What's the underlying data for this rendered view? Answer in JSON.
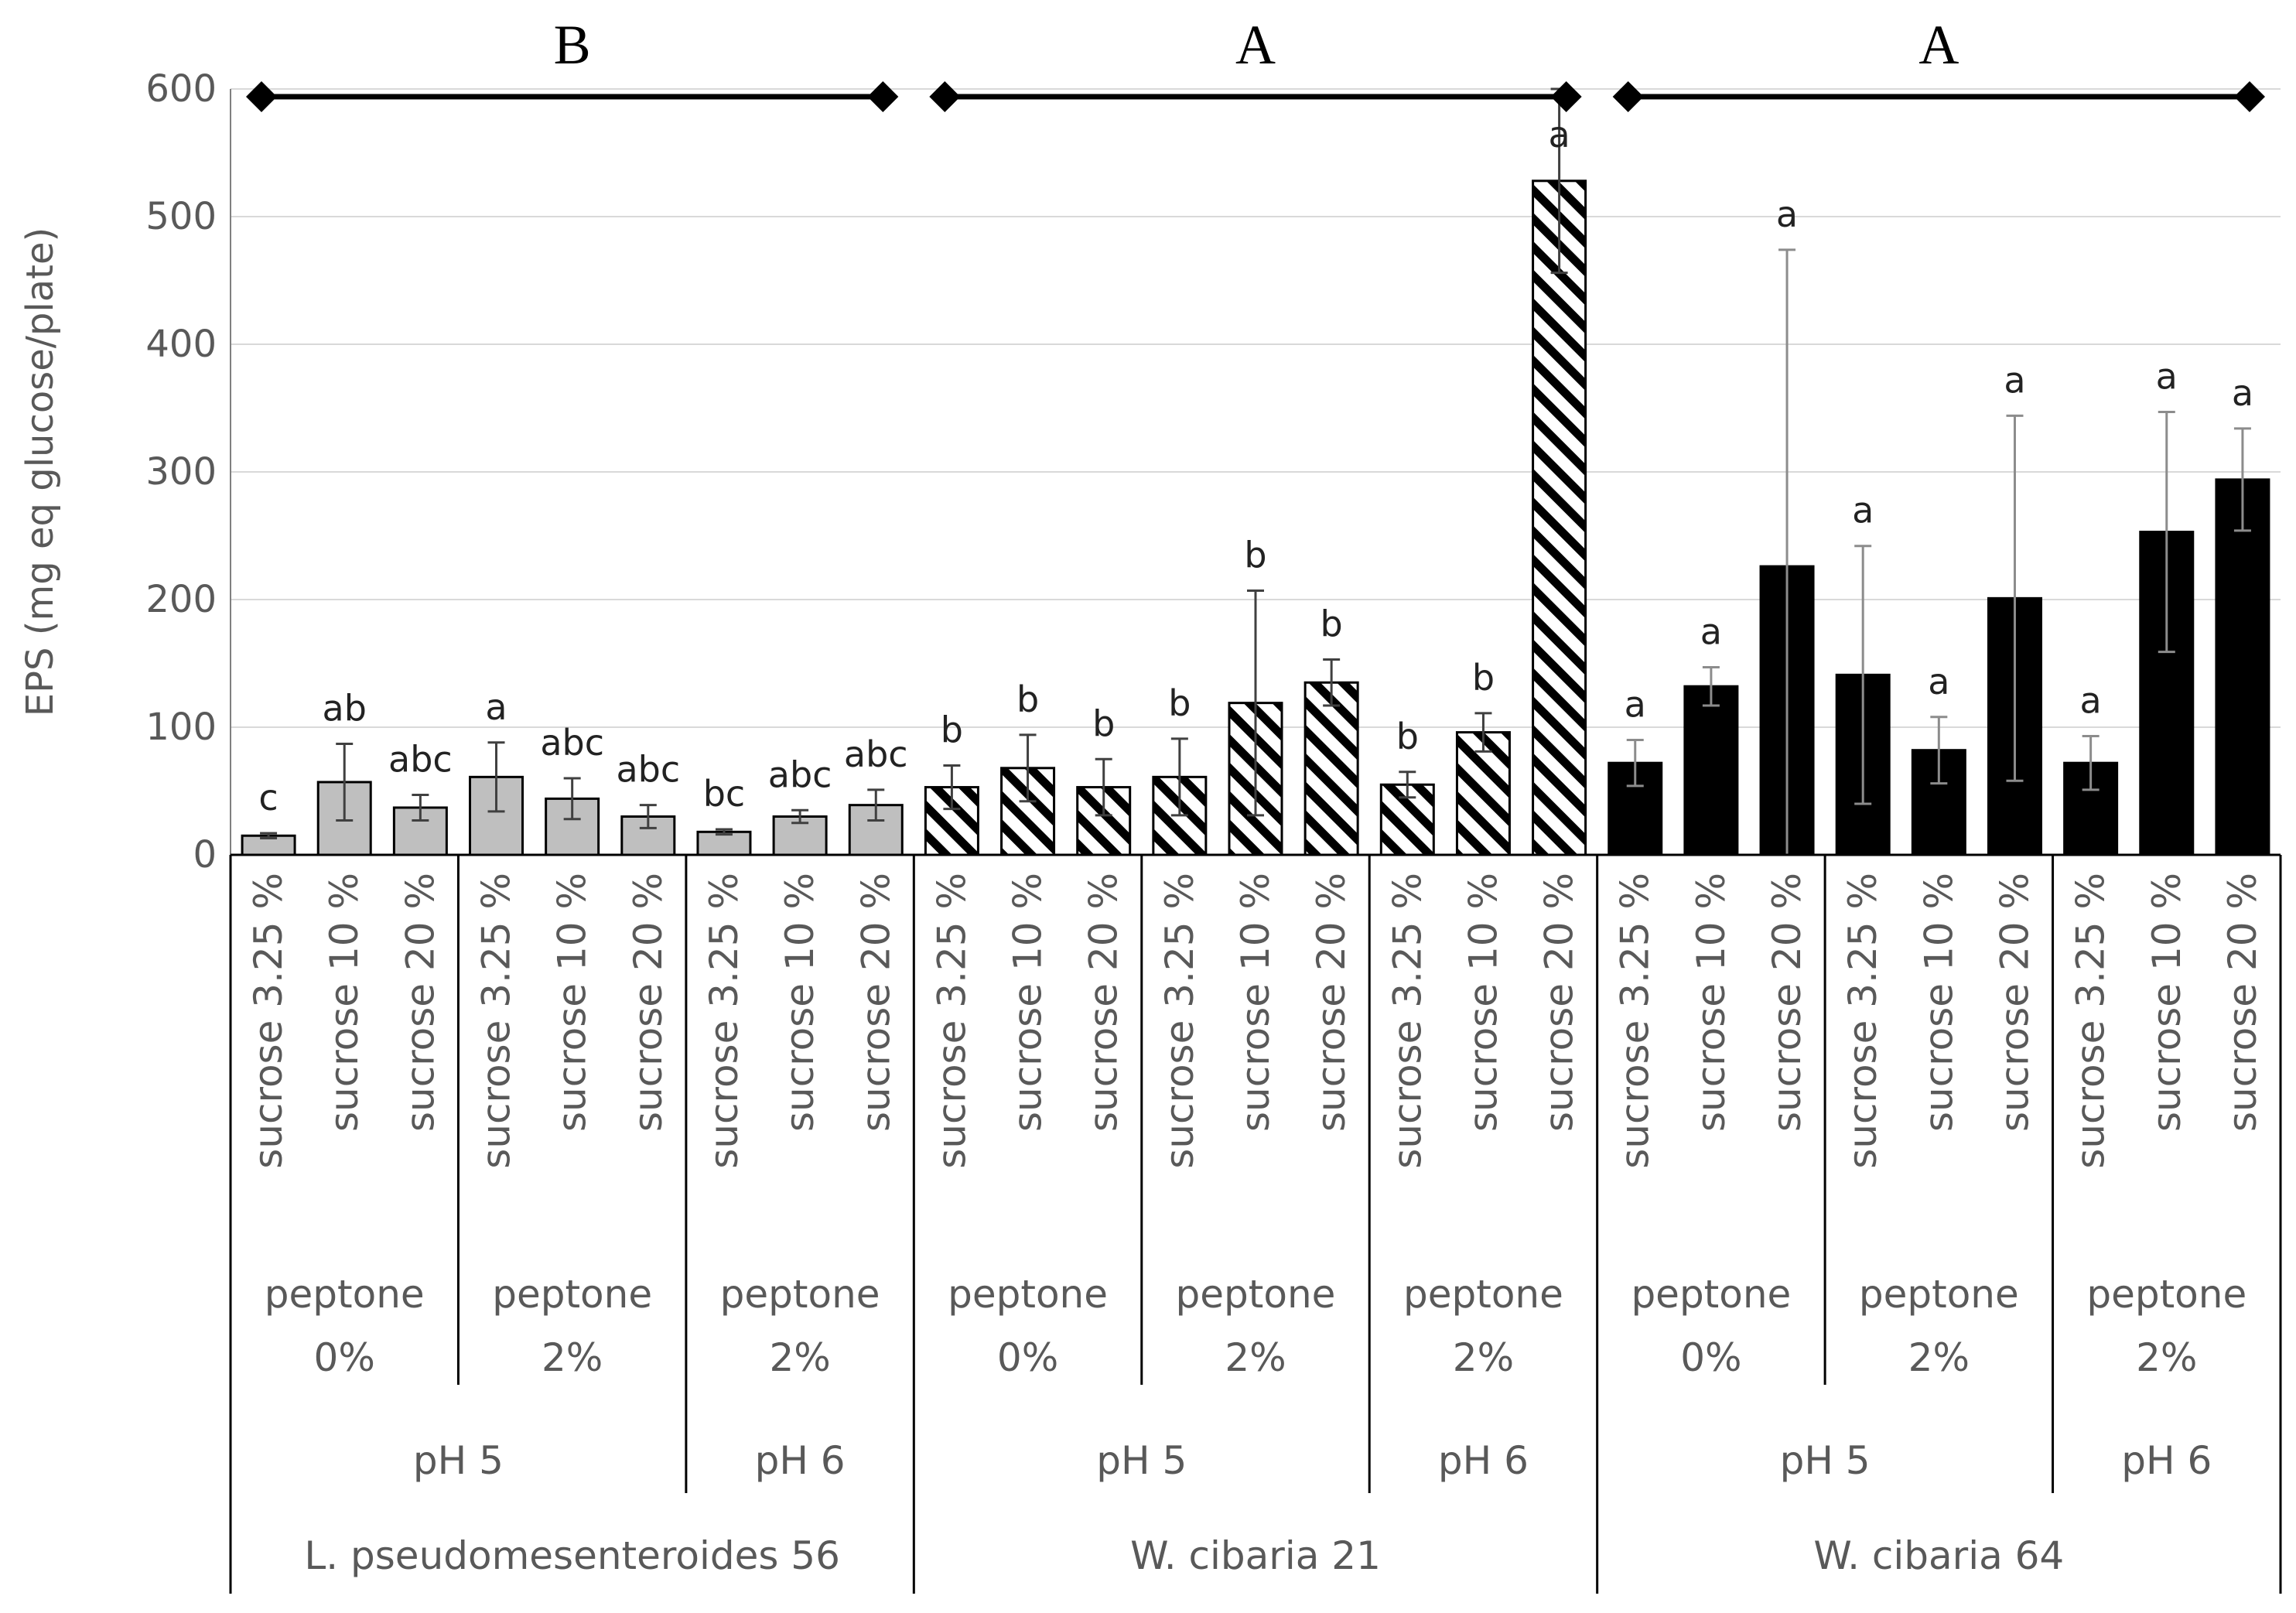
{
  "chart_data": {
    "type": "bar",
    "ylabel": "EPS (mg eq glucose/plate)",
    "ylim": [
      0,
      600
    ],
    "yticks": [
      0,
      100,
      200,
      300,
      400,
      500,
      600
    ],
    "grid": true,
    "strains": [
      {
        "name": "L. pseudomesenteroides 56",
        "group_letter": "B",
        "fill": "#bfbfbf",
        "pattern": "solid",
        "ph_groups": [
          {
            "ph": "pH 5",
            "peptone_groups": [
              {
                "peptone": [
                  "peptone",
                  "0%"
                ],
                "bars": [
                  {
                    "label": "sucrose 3.25 %",
                    "value": 15,
                    "err": 2,
                    "letter": "c"
                  },
                  {
                    "label": "sucrose 10 %",
                    "value": 57,
                    "err": 30,
                    "letter": "ab"
                  },
                  {
                    "label": "sucrose 20 %",
                    "value": 37,
                    "err": 10,
                    "letter": "abc"
                  }
                ]
              },
              {
                "peptone": [
                  "peptone",
                  "2%"
                ],
                "bars": [
                  {
                    "label": "sucrose 3.25 %",
                    "value": 61,
                    "err": 27,
                    "letter": "a"
                  },
                  {
                    "label": "sucrose 10 %",
                    "value": 44,
                    "err": 16,
                    "letter": "abc"
                  },
                  {
                    "label": "sucrose 20 %",
                    "value": 30,
                    "err": 9,
                    "letter": "abc"
                  }
                ]
              }
            ]
          },
          {
            "ph": "pH 6",
            "peptone_groups": [
              {
                "peptone": [
                  "peptone",
                  "2%"
                ],
                "bars": [
                  {
                    "label": "sucrose 3.25 %",
                    "value": 18,
                    "err": 2,
                    "letter": "bc"
                  },
                  {
                    "label": "sucrose 10 %",
                    "value": 30,
                    "err": 5,
                    "letter": "abc"
                  },
                  {
                    "label": "sucrose 20 %",
                    "value": 39,
                    "err": 12,
                    "letter": "abc"
                  }
                ]
              }
            ]
          }
        ]
      },
      {
        "name": "W. cibaria 21",
        "group_letter": "A",
        "fill": "#ffffff",
        "pattern": "hatch",
        "ph_groups": [
          {
            "ph": "pH 5",
            "peptone_groups": [
              {
                "peptone": [
                  "peptone",
                  "0%"
                ],
                "bars": [
                  {
                    "label": "sucrose 3.25 %",
                    "value": 53,
                    "err": 17,
                    "letter": "b"
                  },
                  {
                    "label": "sucrose 10 %",
                    "value": 68,
                    "err": 26,
                    "letter": "b"
                  },
                  {
                    "label": "sucrose 20 %",
                    "value": 53,
                    "err": 22,
                    "letter": "b"
                  }
                ]
              },
              {
                "peptone": [
                  "peptone",
                  "2%"
                ],
                "bars": [
                  {
                    "label": "sucrose 3.25 %",
                    "value": 61,
                    "err": 30,
                    "letter": "b"
                  },
                  {
                    "label": "sucrose 10 %",
                    "value": 119,
                    "err": 88,
                    "letter": "b"
                  },
                  {
                    "label": "sucrose 20 %",
                    "value": 135,
                    "err": 18,
                    "letter": "b"
                  }
                ]
              }
            ]
          },
          {
            "ph": "pH 6",
            "peptone_groups": [
              {
                "peptone": [
                  "peptone",
                  "2%"
                ],
                "bars": [
                  {
                    "label": "sucrose 3.25 %",
                    "value": 55,
                    "err": 10,
                    "letter": "b"
                  },
                  {
                    "label": "sucrose 10 %",
                    "value": 96,
                    "err": 15,
                    "letter": "b"
                  },
                  {
                    "label": "sucrose 20 %",
                    "value": 528,
                    "err": 72,
                    "letter": "a"
                  }
                ]
              }
            ]
          }
        ]
      },
      {
        "name": "W. cibaria 64",
        "group_letter": "A",
        "fill": "#000000",
        "pattern": "solid",
        "ph_groups": [
          {
            "ph": "pH 5",
            "peptone_groups": [
              {
                "peptone": [
                  "peptone",
                  "0%"
                ],
                "bars": [
                  {
                    "label": "sucrose 3.25 %",
                    "value": 72,
                    "err": 18,
                    "letter": "a"
                  },
                  {
                    "label": "sucrose 10 %",
                    "value": 132,
                    "err": 15,
                    "letter": "a"
                  },
                  {
                    "label": "sucrose 20 %",
                    "value": 226,
                    "err": 248,
                    "letter": "a"
                  }
                ]
              },
              {
                "peptone": [
                  "peptone",
                  "2%"
                ],
                "bars": [
                  {
                    "label": "sucrose 3.25 %",
                    "value": 141,
                    "err": 101,
                    "letter": "a"
                  },
                  {
                    "label": "sucrose 10 %",
                    "value": 82,
                    "err": 26,
                    "letter": "a"
                  },
                  {
                    "label": "sucrose 20 %",
                    "value": 201,
                    "err": 143,
                    "letter": "a"
                  }
                ]
              }
            ]
          },
          {
            "ph": "pH 6",
            "peptone_groups": [
              {
                "peptone": [
                  "peptone",
                  "2%"
                ],
                "bars": [
                  {
                    "label": "sucrose 3.25 %",
                    "value": 72,
                    "err": 21,
                    "letter": "a"
                  },
                  {
                    "label": "sucrose 10 %",
                    "value": 253,
                    "err": 94,
                    "letter": "a"
                  },
                  {
                    "label": "sucrose 20 %",
                    "value": 294,
                    "err": 40,
                    "letter": "a"
                  }
                ]
              }
            ]
          }
        ]
      }
    ]
  }
}
